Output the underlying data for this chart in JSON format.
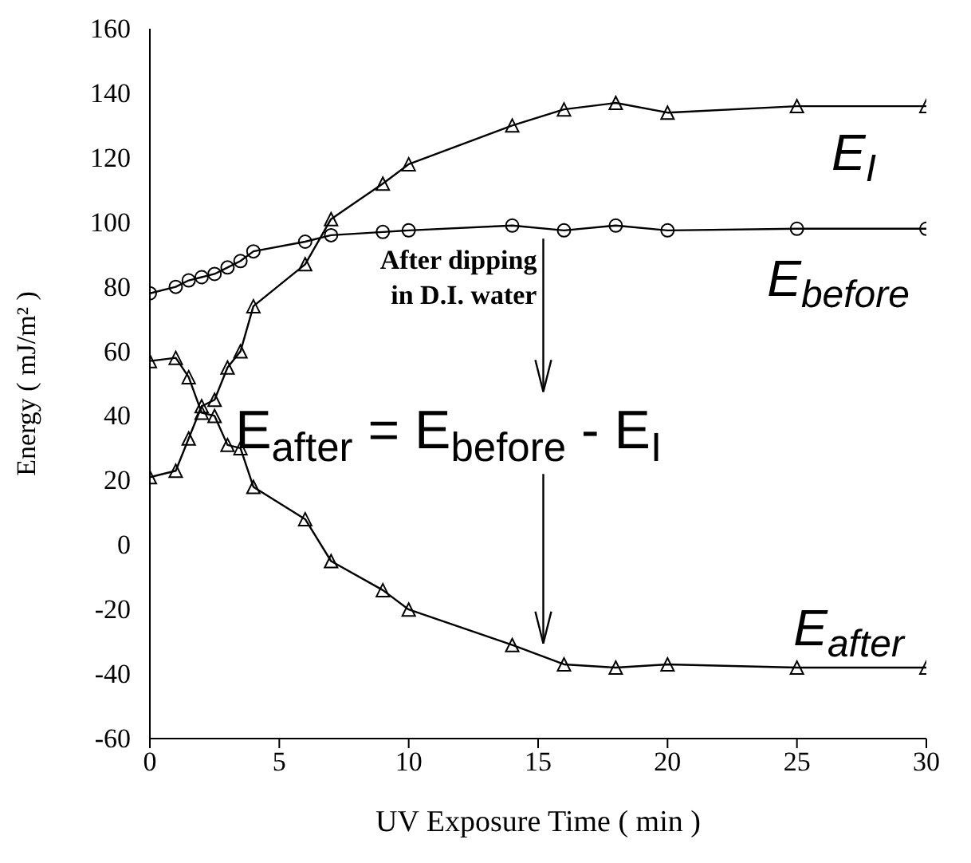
{
  "chart_data": {
    "type": "line",
    "xlabel": "UV Exposure Time ( min )",
    "ylabel": "Energy ( mJ/m² )",
    "xlim": [
      0,
      30
    ],
    "xticks": [
      0,
      5,
      10,
      15,
      20,
      25,
      30
    ],
    "ylim": [
      -60,
      160
    ],
    "yticks": [
      -60,
      -40,
      -20,
      0,
      20,
      40,
      60,
      80,
      100,
      120,
      140,
      160
    ],
    "x": [
      0,
      1,
      1.5,
      2,
      2.5,
      3,
      3.5,
      4,
      6,
      7,
      9,
      10,
      14,
      16,
      18,
      20,
      25,
      30
    ],
    "line_style": "solid",
    "series": [
      {
        "name": "E$_{I}$",
        "color": "#000000",
        "marker": "triangle",
        "values": [
          21,
          23,
          33,
          43,
          45,
          55,
          60,
          74,
          87,
          101,
          112,
          118,
          130,
          135,
          137,
          134,
          136,
          136
        ]
      },
      {
        "name": "E$_{before}$",
        "color": "#000000",
        "marker": "circle",
        "values": [
          78,
          80,
          82,
          83,
          84,
          86,
          88,
          91,
          94,
          96,
          97,
          97.5,
          99,
          97.5,
          99,
          97.5,
          98,
          98
        ]
      },
      {
        "name": "E$_{after}$",
        "color": "#000000",
        "marker": "triangle",
        "values": [
          57,
          58,
          52,
          41,
          40,
          31,
          30,
          18,
          8,
          -5,
          -14,
          -20,
          -31,
          -37,
          -38,
          -37,
          -38,
          -38
        ]
      }
    ],
    "annotations": [
      "After dipping in D.I. water",
      "E$_{after}$ = E$_{before}$ - E$_{I}$"
    ]
  }
}
